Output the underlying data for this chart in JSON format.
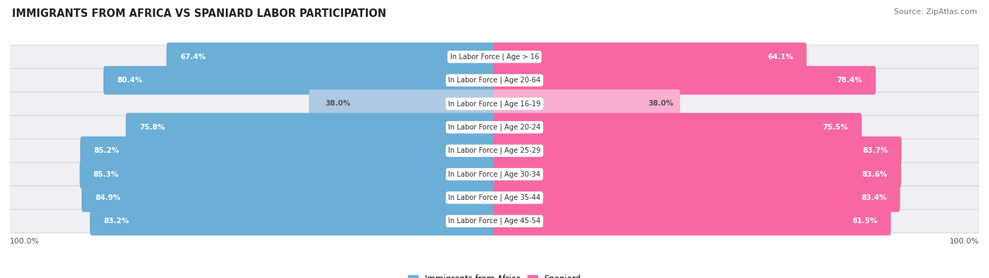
{
  "title": "IMMIGRANTS FROM AFRICA VS SPANIARD LABOR PARTICIPATION",
  "source": "Source: ZipAtlas.com",
  "categories": [
    "In Labor Force | Age > 16",
    "In Labor Force | Age 20-64",
    "In Labor Force | Age 16-19",
    "In Labor Force | Age 20-24",
    "In Labor Force | Age 25-29",
    "In Labor Force | Age 30-34",
    "In Labor Force | Age 35-44",
    "In Labor Force | Age 45-54"
  ],
  "africa_values": [
    67.4,
    80.4,
    38.0,
    75.8,
    85.2,
    85.3,
    84.9,
    83.2
  ],
  "spaniard_values": [
    64.1,
    78.4,
    38.0,
    75.5,
    83.7,
    83.6,
    83.4,
    81.5
  ],
  "africa_color": "#6baed6",
  "africa_color_light": "#aec9e3",
  "spaniard_color": "#f768a1",
  "spaniard_color_light": "#f9afd0",
  "legend_africa": "Immigrants from Africa",
  "legend_spaniard": "Spaniard",
  "max_value": 100.0
}
